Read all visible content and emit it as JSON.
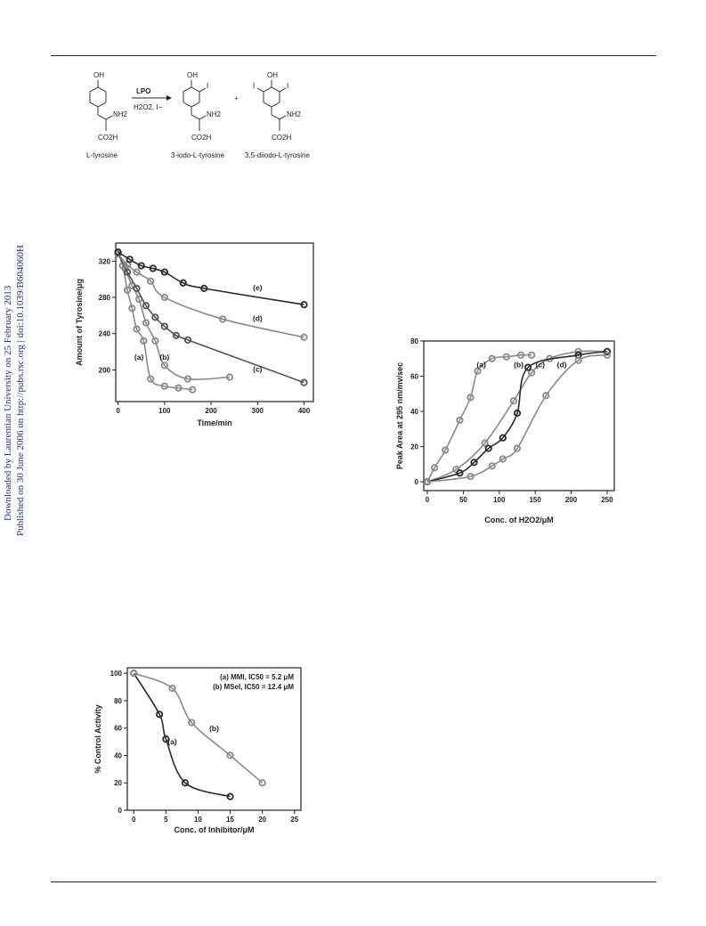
{
  "sidebar": {
    "line1": "Downloaded by Laurentian University on 25 February 2013",
    "line2": "Published on 30 June 2006 on http://pubs.rsc.org | doi:10.1039/B604060H"
  },
  "scheme": {
    "reagent_top": "LPO",
    "reagent_bottom": "H2O2, I−",
    "plus": "+",
    "compounds": [
      {
        "label": "L-tyrosine"
      },
      {
        "label": "3-iodo-L-tyrosine"
      },
      {
        "label": "3,5-diiodo-L-tyrosine"
      }
    ],
    "atoms": {
      "oh": "OH",
      "nh2": "NH2",
      "co2h": "CO2H",
      "iodine": "I"
    }
  },
  "colors": {
    "dark": "#2a2a2a",
    "medium": "#555555",
    "light": "#8a8a8a"
  },
  "chart_data": [
    {
      "type": "scatter",
      "xlabel": "Time/min",
      "ylabel": "Amount of Tyrosine/μg",
      "xlim": [
        -5,
        420
      ],
      "ylim": [
        165,
        340
      ],
      "xticks": [
        0,
        100,
        200,
        300,
        400
      ],
      "yticks": [
        200,
        240,
        280,
        320
      ],
      "grid": false,
      "series": [
        {
          "name": "(a)",
          "color": "#8a8a8a",
          "x": [
            0,
            10,
            20,
            30,
            40,
            55,
            70,
            100,
            130,
            160
          ],
          "y": [
            330,
            315,
            288,
            268,
            245,
            232,
            190,
            182,
            180,
            178
          ],
          "curve_end": 200,
          "label_x": 45,
          "label_y": 211
        },
        {
          "name": "(b)",
          "color": "#8a8a8a",
          "x": [
            0,
            15,
            30,
            45,
            60,
            80,
            100,
            150,
            240
          ],
          "y": [
            330,
            312,
            293,
            278,
            252,
            232,
            205,
            190,
            192
          ],
          "curve_end": 240,
          "label_x": 100,
          "label_y": 211
        },
        {
          "name": "(c)",
          "color": "#555555",
          "x": [
            0,
            20,
            40,
            60,
            80,
            100,
            125,
            150,
            400
          ],
          "y": [
            328,
            308,
            290,
            271,
            258,
            248,
            238,
            233,
            186
          ],
          "curve_end": 400,
          "label_x": 300,
          "label_y": 198
        },
        {
          "name": "(d)",
          "color": "#8a8a8a",
          "x": [
            0,
            20,
            40,
            70,
            100,
            225,
            400
          ],
          "y": [
            328,
            316,
            308,
            298,
            280,
            256,
            236
          ],
          "curve_end": 400,
          "label_x": 300,
          "label_y": 254
        },
        {
          "name": "(e)",
          "color": "#2a2a2a",
          "x": [
            0,
            25,
            50,
            75,
            100,
            140,
            185,
            400
          ],
          "y": [
            330,
            322,
            315,
            312,
            308,
            296,
            290,
            272
          ],
          "curve_end": 400,
          "label_x": 300,
          "label_y": 288
        }
      ]
    },
    {
      "type": "scatter",
      "xlabel": "Conc. of H2O2/μM",
      "ylabel": "Peak Area at 295 nm/mv/sec",
      "xlim": [
        -5,
        260
      ],
      "ylim": [
        -5,
        80
      ],
      "xticks": [
        0,
        50,
        100,
        150,
        200,
        250
      ],
      "yticks": [
        0,
        20,
        40,
        60,
        80
      ],
      "grid": false,
      "series": [
        {
          "name": "(a)",
          "color": "#8a8a8a",
          "x": [
            0,
            10,
            25,
            45,
            60,
            70,
            90,
            110,
            130,
            145
          ],
          "y": [
            0,
            8,
            18,
            35,
            48,
            63,
            70,
            71,
            72,
            72
          ],
          "label_x": 75,
          "label_y": 65
        },
        {
          "name": "(b)",
          "color": "#8a8a8a",
          "x": [
            0,
            40,
            80,
            120,
            145,
            170,
            210,
            250
          ],
          "y": [
            0,
            7,
            22,
            46,
            62,
            70,
            74,
            74
          ],
          "label_x": 127,
          "label_y": 65
        },
        {
          "name": "(c)",
          "color": "#2a2a2a",
          "x": [
            0,
            45,
            65,
            85,
            105,
            125,
            140,
            210,
            250
          ],
          "y": [
            0,
            5,
            11,
            19,
            25,
            39,
            65,
            72,
            74
          ],
          "label_x": 157,
          "label_y": 65
        },
        {
          "name": "(d)",
          "color": "#8a8a8a",
          "x": [
            0,
            60,
            90,
            105,
            125,
            165,
            210,
            250
          ],
          "y": [
            0,
            3,
            9,
            13,
            19,
            49,
            69,
            72
          ],
          "label_x": 187,
          "label_y": 65
        }
      ]
    },
    {
      "type": "scatter",
      "xlabel": "Conc. of Inhibitor/μM",
      "ylabel": "% Control Activity",
      "xlim": [
        -1,
        26
      ],
      "ylim": [
        0,
        104
      ],
      "xticks": [
        0,
        5,
        10,
        15,
        20,
        25
      ],
      "yticks": [
        0,
        20,
        40,
        60,
        80,
        100
      ],
      "grid": false,
      "legend": {
        "position": "top-right",
        "entries": [
          "(a) MMI, IC50 = 5.2 μM",
          "(b) MSeI, IC50 = 12.4 μM"
        ]
      },
      "series": [
        {
          "name": "(a)",
          "color": "#2a2a2a",
          "x": [
            0,
            4,
            5,
            8,
            15
          ],
          "y": [
            100,
            70,
            52,
            20,
            10
          ],
          "label_x": 6,
          "label_y": 48
        },
        {
          "name": "(b)",
          "color": "#8a8a8a",
          "x": [
            0,
            6,
            9,
            15,
            20
          ],
          "y": [
            100,
            89,
            64,
            40,
            20
          ],
          "label_x": 12.5,
          "label_y": 58
        }
      ]
    }
  ]
}
